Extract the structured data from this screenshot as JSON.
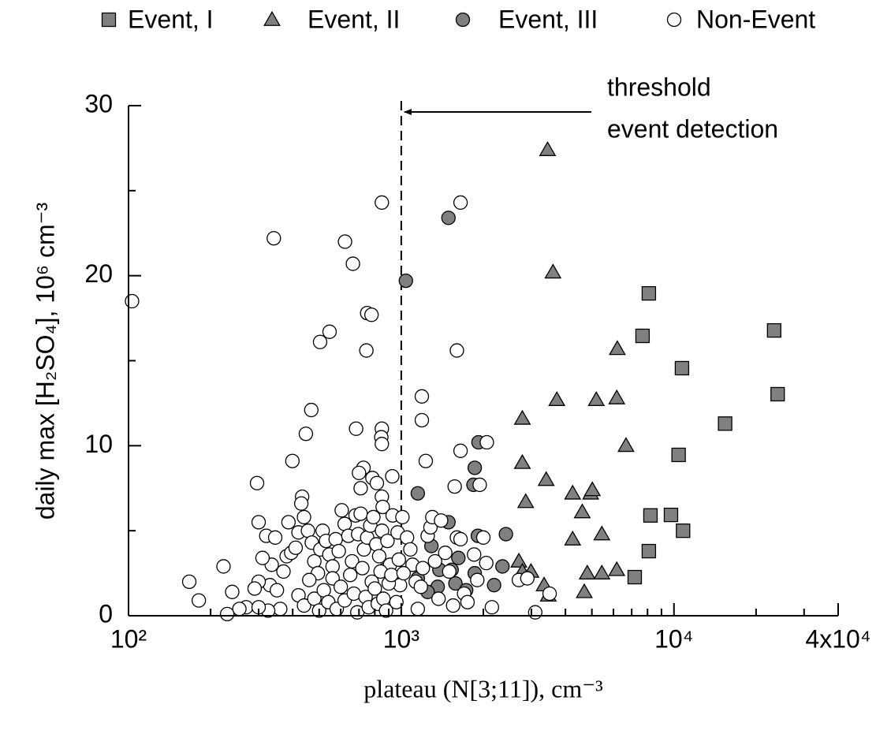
{
  "chart_data": {
    "type": "scatter",
    "x_label": "plateau (N[3;11]),  cm⁻³",
    "y_label": "daily max [H₂SO₄], 10⁶ cm⁻³",
    "xscale": "log",
    "xlim": [
      100,
      40000
    ],
    "ylim": [
      0,
      30
    ],
    "xticks": [
      {
        "value": 100,
        "label": "10²"
      },
      {
        "value": 1000,
        "label": "10³"
      },
      {
        "value": 10000,
        "label": "10⁴"
      },
      {
        "value": 40000,
        "label": "4x10⁴"
      }
    ],
    "xminorticks": [
      200,
      300,
      400,
      500,
      600,
      700,
      800,
      900,
      2000,
      3000,
      4000,
      5000,
      6000,
      7000,
      8000,
      9000,
      20000,
      30000
    ],
    "yticks": [
      0,
      10,
      20,
      30
    ],
    "yminorticks": [
      5,
      15,
      25
    ],
    "legend": "top",
    "threshold_x": 1000,
    "annotation": [
      "threshold",
      "event detection"
    ],
    "series": [
      {
        "name": "Event, I",
        "marker": "square",
        "color": "#808080",
        "x": [
          8090,
          7670,
          23300,
          24000,
          10700,
          15400,
          10400,
          9750,
          10800,
          8200,
          8090,
          7180
        ],
        "y": [
          18.96,
          16.46,
          16.78,
          13.03,
          14.56,
          11.3,
          9.46,
          5.93,
          5.0,
          5.9,
          3.8,
          2.27
        ]
      },
      {
        "name": "Event, II",
        "marker": "triangle",
        "color": "#808080",
        "x": [
          3440,
          3600,
          3720,
          2780,
          2780,
          2860,
          3400,
          4250,
          4950,
          5020,
          6170,
          5190,
          6200,
          6670,
          4250,
          4610,
          5440,
          2700,
          2990,
          2780,
          3340,
          3460,
          4690,
          4810,
          5440,
          6170
        ],
        "y": [
          27.4,
          20.2,
          12.7,
          11.6,
          9.0,
          6.7,
          8.0,
          7.2,
          7.2,
          7.4,
          12.8,
          12.7,
          15.7,
          10.0,
          4.5,
          6.1,
          4.8,
          3.2,
          2.6,
          2.6,
          1.8,
          1.2,
          1.4,
          2.5,
          2.5,
          2.7
        ]
      },
      {
        "name": "Event, III",
        "marker": "circle",
        "color": "#808080",
        "x": [
          1040,
          1490,
          1150,
          1840,
          1860,
          1920,
          1490,
          1290,
          2420,
          1910,
          1620,
          1580,
          1730,
          1860,
          2190,
          2350,
          1360,
          1530,
          1380,
          1150,
          1250
        ],
        "y": [
          19.7,
          23.4,
          7.2,
          7.7,
          8.7,
          10.2,
          5.5,
          4.1,
          4.8,
          4.7,
          3.4,
          1.9,
          1.5,
          2.5,
          1.8,
          2.9,
          1.7,
          2.7,
          2.7,
          2.2,
          1.4
        ]
      },
      {
        "name": "Non-Event",
        "marker": "circle",
        "color": "#ffffff",
        "x": [
          103,
          167,
          181,
          223,
          296,
          341,
          399,
          447,
          468,
          622,
          665,
          849,
          1650,
          504,
          546,
          750,
          778,
          745,
          1600,
          1190,
          1190,
          1230,
          1650,
          1570,
          1940,
          2060,
          849,
          845,
          849,
          683,
          727,
          700,
          784,
          814,
          927,
          849,
          855,
          710,
          386,
          433,
          300,
          320,
          345,
          335,
          310,
          330,
          300,
          290,
          350,
          360,
          325,
          270,
          255,
          240,
          230,
          300,
          370,
          380,
          395,
          410,
          420,
          430,
          440,
          455,
          470,
          480,
          495,
          505,
          515,
          530,
          545,
          560,
          575,
          590,
          605,
          620,
          640,
          660,
          680,
          695,
          710,
          730,
          750,
          770,
          790,
          810,
          830,
          850,
          870,
          890,
          910,
          930,
          950,
          970,
          990,
          420,
          440,
          460,
          480,
          500,
          520,
          540,
          560,
          580,
          600,
          620,
          650,
          670,
          690,
          720,
          740,
          760,
          780,
          800,
          820,
          840,
          860,
          880,
          900,
          920,
          960,
          980,
          1050,
          1080,
          1100,
          1130,
          1150,
          1180,
          1200,
          1250,
          1280,
          1300,
          1330,
          1370,
          1400,
          1450,
          1500,
          1550,
          1600,
          1650,
          1700,
          1750,
          1850,
          1900,
          2000,
          2050,
          2150,
          2700,
          2900,
          3100,
          3500,
          1020,
          1010
        ],
        "y": [
          18.5,
          2.0,
          0.9,
          2.9,
          7.8,
          22.2,
          9.1,
          10.7,
          12.1,
          22.0,
          20.7,
          24.3,
          24.3,
          16.1,
          16.7,
          17.8,
          17.7,
          15.6,
          15.6,
          12.9,
          11.5,
          9.1,
          9.7,
          7.6,
          7.7,
          10.2,
          11.0,
          10.5,
          10.1,
          11.0,
          8.7,
          8.4,
          8.1,
          7.8,
          8.2,
          7.0,
          6.4,
          7.5,
          5.5,
          7.0,
          5.5,
          4.7,
          4.6,
          3.0,
          3.4,
          1.8,
          2.0,
          1.6,
          1.5,
          0.4,
          0.3,
          0.5,
          0.4,
          1.4,
          0.1,
          0.5,
          2.6,
          3.5,
          3.7,
          4.0,
          4.9,
          6.6,
          5.8,
          5.0,
          4.3,
          3.2,
          2.5,
          3.9,
          5.0,
          4.4,
          3.6,
          2.9,
          4.5,
          3.8,
          6.2,
          5.4,
          4.7,
          3.2,
          5.9,
          4.8,
          6.0,
          3.9,
          4.6,
          5.3,
          5.8,
          4.2,
          3.5,
          5.0,
          2.7,
          4.4,
          3.0,
          5.9,
          2.0,
          4.9,
          1.8,
          1.2,
          0.6,
          2.1,
          1.0,
          0.3,
          1.5,
          0.8,
          2.2,
          0.4,
          1.7,
          0.9,
          2.4,
          1.3,
          0.2,
          2.8,
          1.1,
          0.5,
          2.0,
          1.6,
          0.7,
          2.6,
          1.0,
          0.3,
          1.9,
          2.4,
          0.8,
          3.3,
          4.6,
          3.9,
          3.0,
          2.0,
          0.4,
          1.7,
          2.8,
          4.7,
          5.2,
          5.8,
          3.2,
          1.0,
          5.6,
          3.7,
          2.6,
          0.6,
          4.6,
          4.5,
          1.3,
          0.8,
          3.6,
          2.1,
          4.6,
          3.1,
          0.5,
          2.1,
          2.2,
          0.2,
          1.3,
          2.5,
          5.8
        ]
      }
    ]
  }
}
